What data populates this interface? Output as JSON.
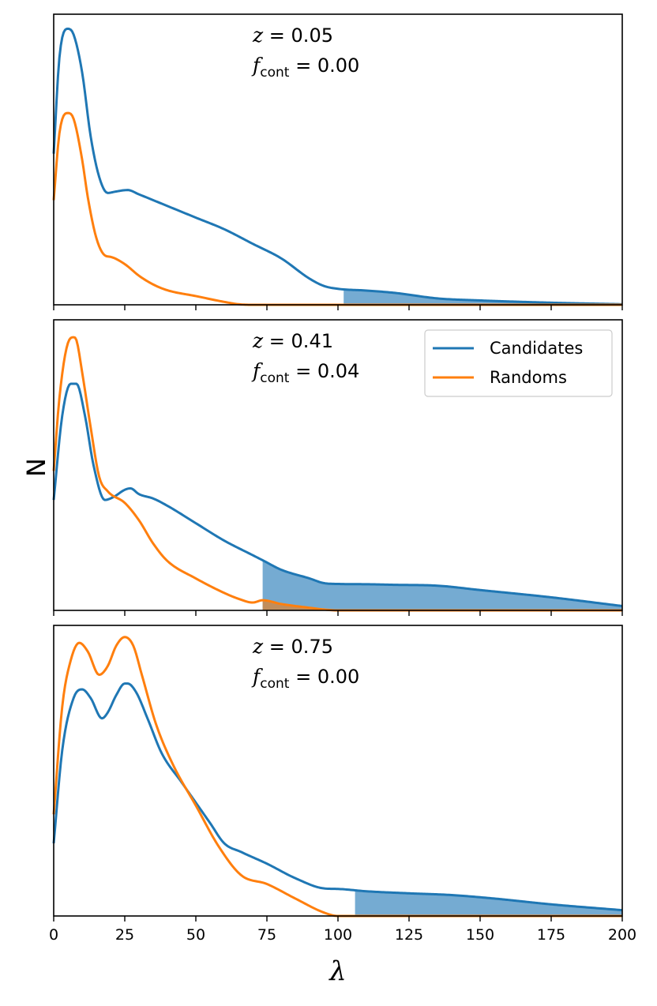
{
  "chart_data": {
    "type": "line",
    "xlabel": "λ",
    "ylabel": "N",
    "xlim": [
      0,
      200
    ],
    "x_ticks": [
      0,
      25,
      50,
      75,
      100,
      125,
      150,
      175,
      200
    ],
    "x_tick_labels": [
      "0",
      "25",
      "50",
      "75",
      "100",
      "125",
      "150",
      "175",
      "200"
    ],
    "y_ticks": "none",
    "legend": {
      "location": "upper right of middle panel",
      "entries": [
        {
          "label": "Candidates",
          "color": "#1f77b4"
        },
        {
          "label": "Randoms",
          "color": "#ff7f0e"
        }
      ]
    },
    "colors": {
      "candidates": "#1f77b4",
      "randoms": "#ff7f0e",
      "fill_candidates": "#6ea6d0",
      "fill_randoms": "#c98a4f"
    },
    "panels": [
      {
        "z_label": "z = 0.05",
        "z_value": "0.05",
        "fcont_label": "f_cont = 0.00",
        "fcont_value": "0.00",
        "ylim": [
          0,
          1
        ],
        "shade_from_x": 102,
        "series": [
          {
            "name": "Candidates",
            "x": [
              0,
              2,
              5,
              7,
              10,
              13,
              16,
              19,
              22,
              26,
              30,
              40,
              50,
              60,
              70,
              80,
              90,
              95,
              100,
              110,
              120,
              135,
              150,
              165,
              180,
              200
            ],
            "y": [
              0.52,
              0.85,
              0.95,
              0.93,
              0.8,
              0.58,
              0.44,
              0.385,
              0.39,
              0.395,
              0.38,
              0.34,
              0.3,
              0.26,
              0.21,
              0.16,
              0.09,
              0.065,
              0.055,
              0.049,
              0.041,
              0.022,
              0.015,
              0.01,
              0.006,
              0.002
            ]
          },
          {
            "name": "Randoms",
            "x": [
              0,
              2,
              5,
              7,
              10,
              12,
              15,
              18,
              20,
              25,
              30,
              35,
              40,
              50,
              60,
              65,
              70,
              80,
              100,
              150,
              200
            ],
            "y": [
              0.36,
              0.59,
              0.66,
              0.64,
              0.5,
              0.37,
              0.23,
              0.17,
              0.165,
              0.14,
              0.1,
              0.07,
              0.05,
              0.03,
              0.01,
              0.002,
              0.0,
              0.0,
              0.0,
              0.0,
              0.0
            ]
          }
        ]
      },
      {
        "z_label": "z = 0.41",
        "z_value": "0.41",
        "fcont_label": "f_cont = 0.04",
        "fcont_value": "0.04",
        "ylim": [
          0,
          1
        ],
        "shade_from_x": 73.5,
        "series": [
          {
            "name": "Candidates",
            "x": [
              0,
              3,
              6,
              8,
              11,
              14,
              18,
              21,
              25,
              27,
              30,
              35,
              40,
              50,
              60,
              70,
              74,
              80,
              90,
              95,
              100,
              110,
              120,
              135,
              150,
              175,
              200
            ],
            "y": [
              0.38,
              0.67,
              0.78,
              0.78,
              0.67,
              0.5,
              0.38,
              0.39,
              0.415,
              0.42,
              0.4,
              0.385,
              0.36,
              0.3,
              0.24,
              0.19,
              0.17,
              0.14,
              0.11,
              0.094,
              0.091,
              0.09,
              0.088,
              0.085,
              0.07,
              0.045,
              0.015
            ]
          },
          {
            "name": "Randoms",
            "x": [
              0,
              2,
              5,
              7,
              8,
              10,
              13,
              16,
              19,
              25,
              30,
              35,
              40,
              50,
              60,
              65,
              70,
              73.5,
              80,
              90,
              95,
              100,
              120,
              150,
              175,
              200
            ],
            "y": [
              0.48,
              0.73,
              0.92,
              0.94,
              0.93,
              0.82,
              0.63,
              0.46,
              0.41,
              0.37,
              0.31,
              0.23,
              0.17,
              0.11,
              0.06,
              0.04,
              0.027,
              0.035,
              0.022,
              0.009,
              0.003,
              0.0,
              0.0,
              0.0,
              0.0,
              0.0
            ]
          }
        ]
      },
      {
        "z_label": "z = 0.75",
        "z_value": "0.75",
        "fcont_label": "f_cont = 0.00",
        "fcont_value": "0.00",
        "ylim": [
          0,
          1
        ],
        "shade_from_x": 106,
        "series": [
          {
            "name": "Candidates",
            "x": [
              0,
              3,
              7,
              10,
              13,
              17,
              19,
              22,
              25,
              26,
              29,
              33,
              38,
              45,
              50,
              55,
              60,
              66,
              75,
              85,
              95,
              100,
              110,
              125,
              140,
              155,
              175,
              200
            ],
            "y": [
              0.25,
              0.57,
              0.75,
              0.78,
              0.75,
              0.68,
              0.7,
              0.76,
              0.8,
              0.8,
              0.77,
              0.68,
              0.56,
              0.46,
              0.39,
              0.32,
              0.25,
              0.22,
              0.18,
              0.13,
              0.095,
              0.093,
              0.085,
              0.078,
              0.072,
              0.06,
              0.04,
              0.02
            ]
          },
          {
            "name": "Randoms",
            "x": [
              0,
              3,
              6,
              9,
              12,
              16,
              19,
              22,
              25,
              28,
              31,
              36,
              42,
              50,
              58,
              66,
              75,
              85,
              95,
              100,
              120,
              150,
              200
            ],
            "y": [
              0.35,
              0.72,
              0.88,
              0.94,
              0.91,
              0.83,
              0.86,
              0.93,
              0.96,
              0.93,
              0.83,
              0.66,
              0.52,
              0.38,
              0.24,
              0.14,
              0.11,
              0.06,
              0.012,
              0.0,
              0.0,
              0.0,
              0.0
            ]
          }
        ]
      }
    ]
  }
}
